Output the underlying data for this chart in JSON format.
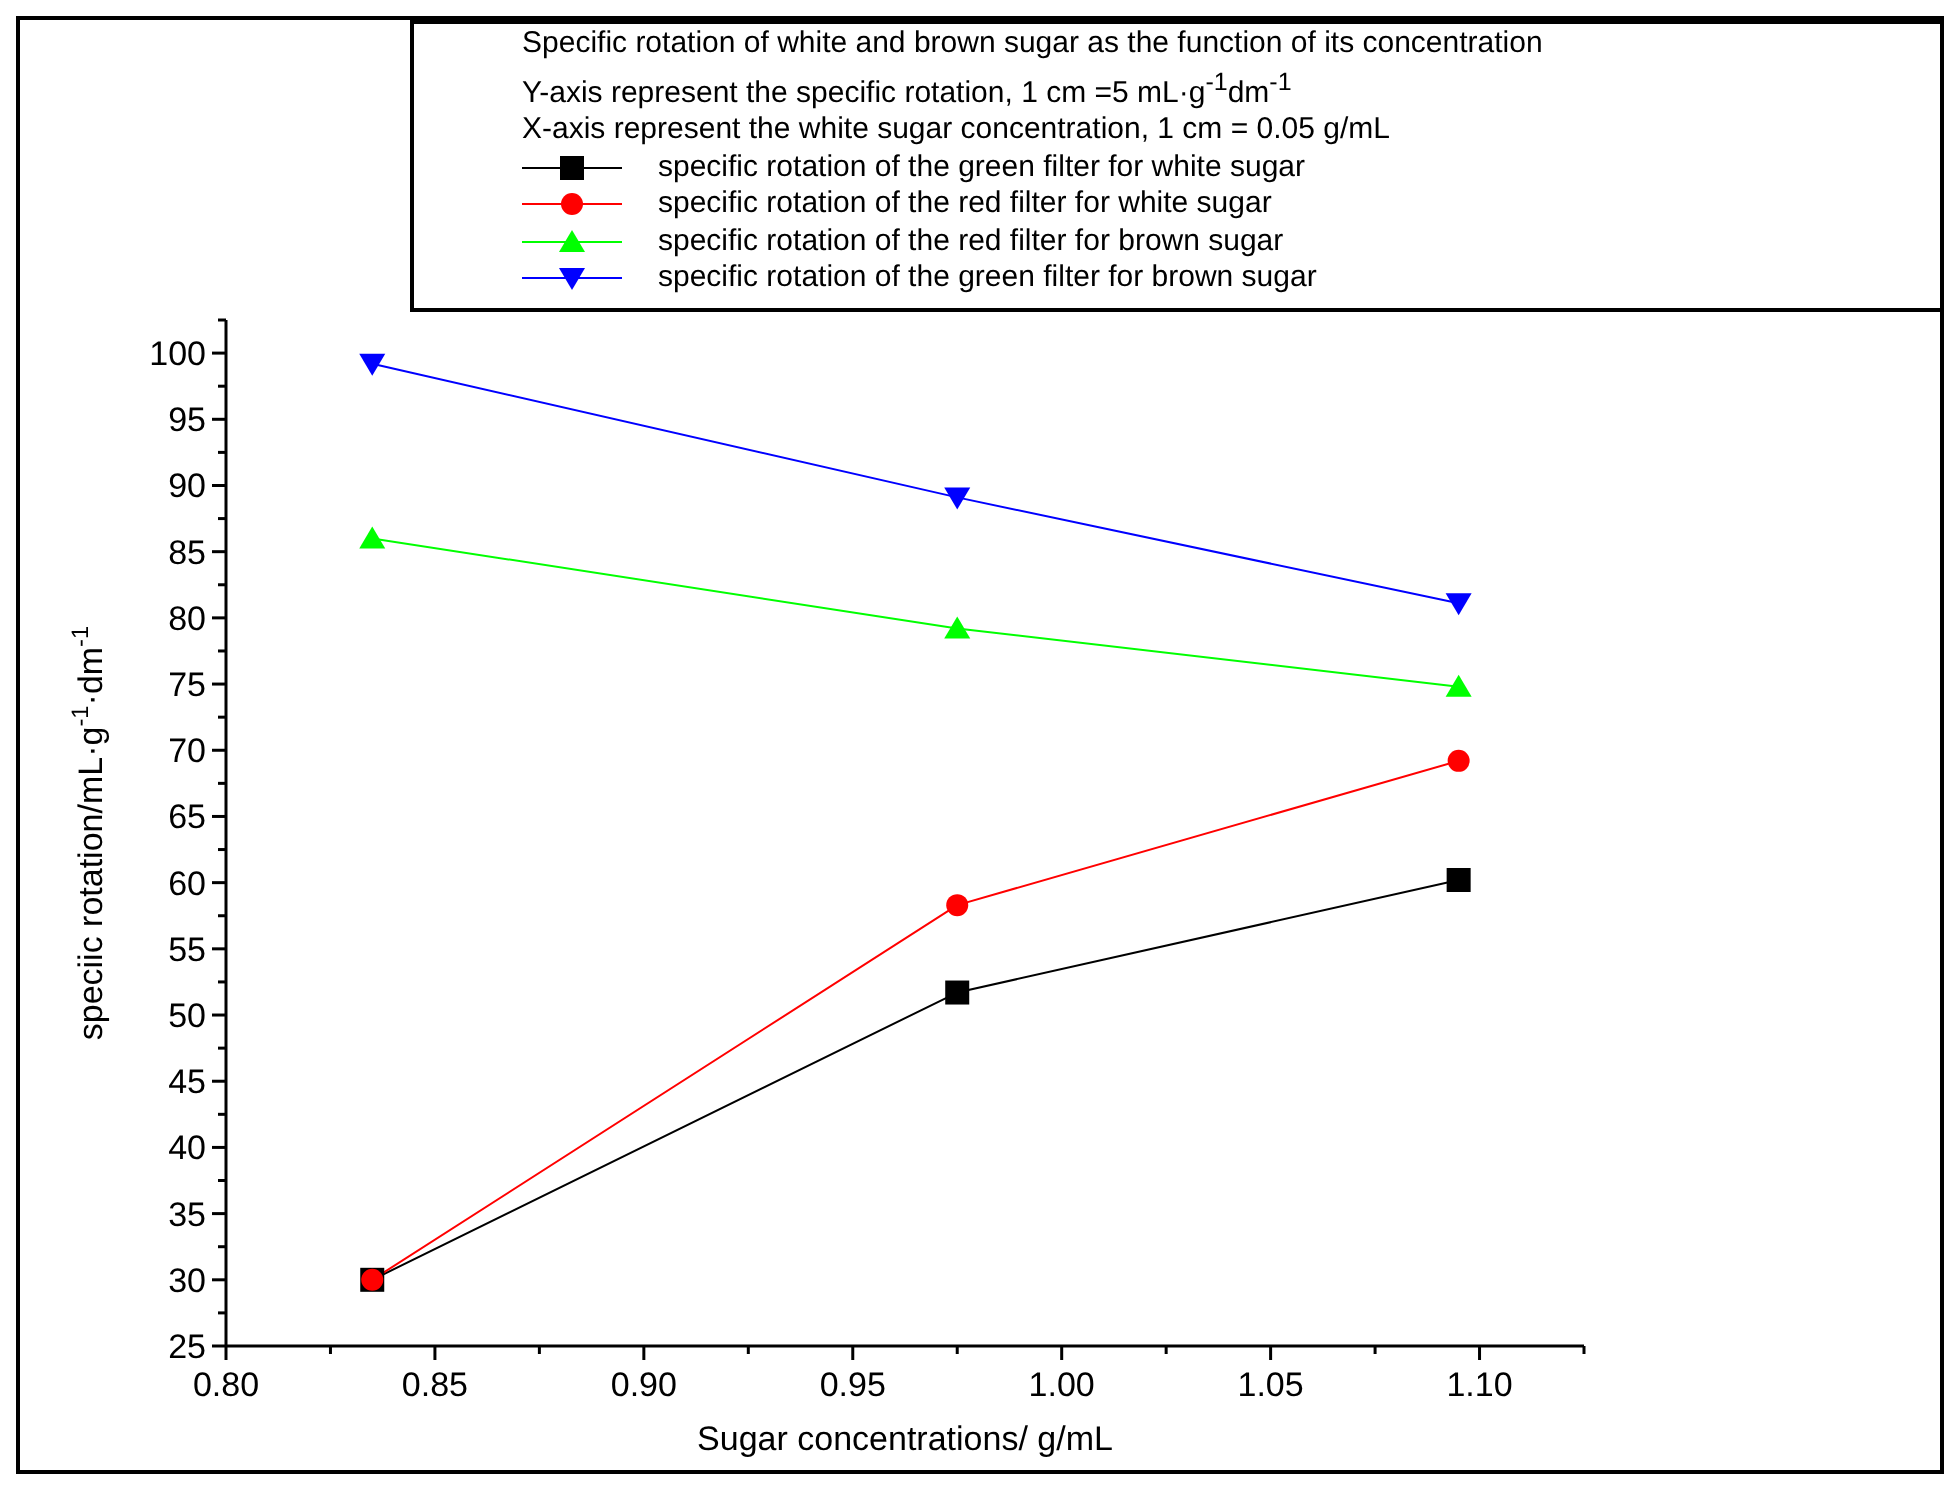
{
  "chart_data": {
    "type": "line",
    "title": "Specific rotation of white and brown sugar as the function of its concentration",
    "annotations": [
      "Y-axis represent the specific rotation, 1 cm =5 mL·g$^{-1}$dm$^{-1}$",
      "X-axis represent the white sugar concentration, 1 cm = 0.05 g/mL"
    ],
    "xlabel": "Sugar concentrations/ g/mL",
    "ylabel": "speciic rotation/mL·g$^{-1}$·dm$^{-1}$",
    "x": [
      0.835,
      0.975,
      1.095
    ],
    "series": [
      {
        "name": "specific rotation of the green filter for white sugar",
        "color": "#000000",
        "marker": "square",
        "values": [
          30,
          51.7,
          60.2
        ]
      },
      {
        "name": "specific rotation of the red filter for white sugar",
        "color": "#ff0000",
        "marker": "circle",
        "values": [
          30,
          58.3,
          69.2
        ]
      },
      {
        "name": "specific rotation of the red filter for brown sugar",
        "color": "#00ff00",
        "marker": "triangle",
        "values": [
          86,
          79.2,
          74.8
        ]
      },
      {
        "name": "specific rotation of the green filter for brown sugar",
        "color": "#0000ff",
        "marker": "triangle-down",
        "values": [
          99.2,
          89.1,
          81.1
        ]
      }
    ],
    "xlim": [
      0.8,
      1.125
    ],
    "xticks": [
      {
        "value": 0.8,
        "label": "0.80"
      },
      {
        "value": 0.825,
        "label": null
      },
      {
        "value": 0.85,
        "label": "0.85"
      },
      {
        "value": 0.875,
        "label": null
      },
      {
        "value": 0.9,
        "label": "0.90"
      },
      {
        "value": 0.925,
        "label": null
      },
      {
        "value": 0.95,
        "label": "0.95"
      },
      {
        "value": 0.975,
        "label": null
      },
      {
        "value": 1.0,
        "label": "1.00"
      },
      {
        "value": 1.025,
        "label": null
      },
      {
        "value": 1.05,
        "label": "1.05"
      },
      {
        "value": 1.075,
        "label": null
      },
      {
        "value": 1.1,
        "label": "1.10"
      },
      {
        "value": 1.125,
        "label": null
      }
    ],
    "ylim": [
      25,
      102.5
    ],
    "yticks": [
      25,
      {
        "value": 27.5,
        "label": null
      },
      30,
      {
        "value": 32.5,
        "label": null
      },
      35,
      {
        "value": 37.5,
        "label": null
      },
      40,
      {
        "value": 42.5,
        "label": null
      },
      45,
      {
        "value": 47.5,
        "label": null
      },
      50,
      {
        "value": 52.5,
        "label": null
      },
      55,
      {
        "value": 57.5,
        "label": null
      },
      60,
      {
        "value": 62.5,
        "label": null
      },
      65,
      {
        "value": 67.5,
        "label": null
      },
      70,
      {
        "value": 72.5,
        "label": null
      },
      75,
      {
        "value": 77.5,
        "label": null
      },
      80,
      {
        "value": 82.5,
        "label": null
      },
      85,
      {
        "value": 87.5,
        "label": null
      },
      90,
      {
        "value": 92.5,
        "label": null
      },
      95,
      {
        "value": 97.5,
        "label": null
      },
      100,
      {
        "value": 102.5,
        "label": null
      }
    ],
    "grid": false,
    "legend": "top right",
    "line_style": "solid"
  }
}
